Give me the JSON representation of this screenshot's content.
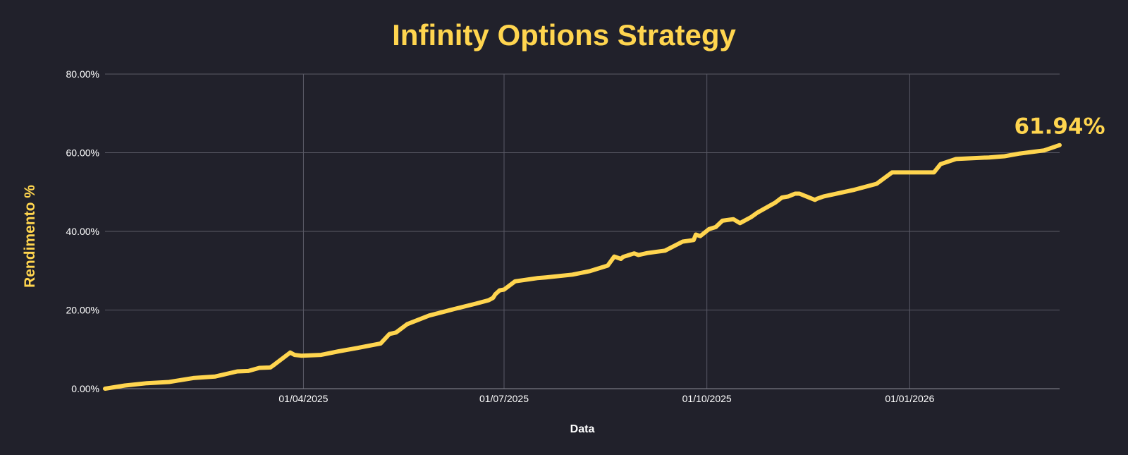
{
  "chart_data": {
    "type": "line",
    "title": "Infinity Options Strategy",
    "xlabel": "Data",
    "ylabel": "Rendimento %",
    "ylim": [
      0,
      80
    ],
    "y_ticks": [
      "0.00%",
      "20.00%",
      "40.00%",
      "60.00%",
      "80.00%"
    ],
    "y_tick_values": [
      0,
      20,
      40,
      60,
      80
    ],
    "xlim": [
      "2025-01-01",
      "2026-03-10"
    ],
    "x_ticks": [
      "01/04/2025",
      "01/07/2025",
      "01/10/2025",
      "01/01/2026"
    ],
    "x_tick_dates": [
      "2025-04-01",
      "2025-07-01",
      "2025-10-01",
      "2026-01-01"
    ],
    "grid": true,
    "line_color": "#ffd54f",
    "end_label": "61.94%",
    "series": [
      {
        "x": [
          "2025-01-01",
          "2025-01-10",
          "2025-01-20",
          "2025-01-30",
          "2025-02-10",
          "2025-02-20",
          "2025-03-02",
          "2025-03-07",
          "2025-03-12",
          "2025-03-17",
          "2025-03-19",
          "2025-03-26",
          "2025-03-28",
          "2025-03-31",
          "2025-04-09",
          "2025-04-17",
          "2025-04-25",
          "2025-05-06",
          "2025-05-10",
          "2025-05-13",
          "2025-05-18",
          "2025-05-28",
          "2025-06-08",
          "2025-06-18",
          "2025-06-24",
          "2025-06-26",
          "2025-06-27",
          "2025-06-29",
          "2025-07-01",
          "2025-07-06",
          "2025-07-16",
          "2025-07-20",
          "2025-08-01",
          "2025-08-09",
          "2025-08-17",
          "2025-08-20",
          "2025-08-23",
          "2025-08-24",
          "2025-08-29",
          "2025-08-31",
          "2025-09-04",
          "2025-09-12",
          "2025-09-20",
          "2025-09-25",
          "2025-09-26",
          "2025-09-28",
          "2025-10-02",
          "2025-10-05",
          "2025-10-08",
          "2025-10-13",
          "2025-10-16",
          "2025-10-21",
          "2025-10-24",
          "2025-11-01",
          "2025-11-04",
          "2025-11-07",
          "2025-11-10",
          "2025-11-12",
          "2025-11-19",
          "2025-11-20",
          "2025-11-23",
          "2025-12-07",
          "2025-12-17",
          "2025-12-24",
          "2026-01-12",
          "2026-01-15",
          "2026-01-22",
          "2026-02-06",
          "2026-02-13",
          "2026-02-20",
          "2026-03-03",
          "2026-03-10"
        ],
        "y": [
          0,
          0.8,
          1.4,
          1.7,
          2.7,
          3.1,
          4.4,
          4.5,
          5.3,
          5.4,
          6.2,
          9.2,
          8.6,
          8.4,
          8.6,
          9.5,
          10.3,
          11.5,
          13.9,
          14.3,
          16.4,
          18.6,
          20.2,
          21.6,
          22.5,
          23.1,
          24.0,
          25.0,
          25.2,
          27.3,
          28.1,
          28.3,
          29.0,
          29.9,
          31.3,
          33.6,
          33.0,
          33.5,
          34.4,
          34.0,
          34.5,
          35.1,
          37.4,
          37.8,
          39.2,
          38.8,
          40.6,
          41.1,
          42.7,
          43.1,
          42.1,
          43.6,
          44.8,
          47.3,
          48.6,
          48.9,
          49.6,
          49.6,
          48.0,
          48.3,
          48.9,
          50.6,
          52.1,
          55.0,
          55.0,
          57.1,
          58.4,
          58.8,
          59.1,
          59.8,
          60.6,
          61.94
        ]
      }
    ]
  }
}
